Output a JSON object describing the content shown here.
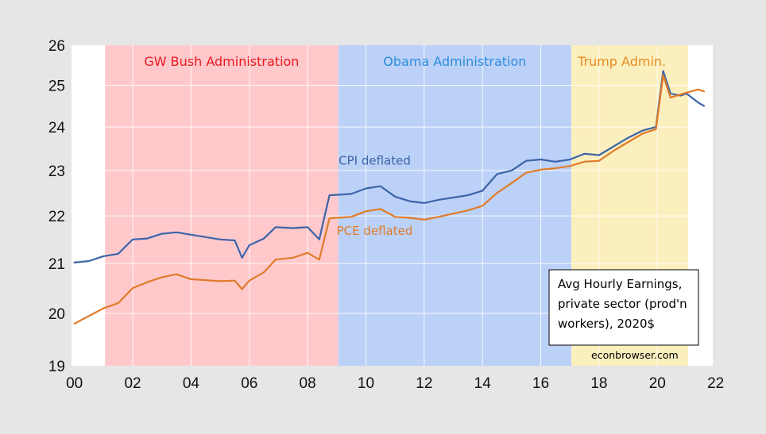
{
  "chart_data": {
    "type": "line",
    "title": "",
    "xlabel": "",
    "ylabel": "",
    "xlim": [
      1999.9,
      2021.9
    ],
    "ylim": [
      19,
      26
    ],
    "y_scale": "log",
    "grid": true,
    "x_ticks": [
      {
        "value": 2000,
        "label": "00"
      },
      {
        "value": 2002,
        "label": "02"
      },
      {
        "value": 2004,
        "label": "04"
      },
      {
        "value": 2006,
        "label": "06"
      },
      {
        "value": 2008,
        "label": "08"
      },
      {
        "value": 2010,
        "label": "10"
      },
      {
        "value": 2012,
        "label": "12"
      },
      {
        "value": 2014,
        "label": "14"
      },
      {
        "value": 2016,
        "label": "16"
      },
      {
        "value": 2018,
        "label": "18"
      },
      {
        "value": 2020,
        "label": "20"
      },
      {
        "value": 2022,
        "label": "22"
      }
    ],
    "y_ticks": [
      19,
      20,
      21,
      22,
      23,
      24,
      25,
      26
    ],
    "administrations": [
      {
        "label": "GW Bush Administration",
        "start": 2001.05,
        "end": 2009.05,
        "fill": "#ffc9cc",
        "text_color": "#e8191e"
      },
      {
        "label": "Obama Administration",
        "start": 2009.05,
        "end": 2017.05,
        "fill": "#bcd1f7",
        "text_color": "#2b8cdc"
      },
      {
        "label": "Trump Admin.",
        "start": 2017.05,
        "end": 2021.05,
        "fill": "#fcefbe",
        "text_color": "#e68b22"
      }
    ],
    "series": [
      {
        "name": "CPI deflated",
        "color": "#3c64a8",
        "points": [
          [
            2000.0,
            21.02
          ],
          [
            2000.5,
            21.05
          ],
          [
            2001.0,
            21.15
          ],
          [
            2001.5,
            21.2
          ],
          [
            2002.0,
            21.5
          ],
          [
            2002.5,
            21.52
          ],
          [
            2003.0,
            21.62
          ],
          [
            2003.5,
            21.65
          ],
          [
            2004.0,
            21.6
          ],
          [
            2004.5,
            21.55
          ],
          [
            2005.0,
            21.5
          ],
          [
            2005.5,
            21.48
          ],
          [
            2005.75,
            21.12
          ],
          [
            2006.0,
            21.38
          ],
          [
            2006.5,
            21.52
          ],
          [
            2006.9,
            21.76
          ],
          [
            2007.5,
            21.74
          ],
          [
            2008.0,
            21.76
          ],
          [
            2008.4,
            21.5
          ],
          [
            2008.75,
            22.45
          ],
          [
            2009.5,
            22.48
          ],
          [
            2010.0,
            22.6
          ],
          [
            2010.5,
            22.65
          ],
          [
            2011.0,
            22.42
          ],
          [
            2011.5,
            22.32
          ],
          [
            2012.0,
            22.28
          ],
          [
            2012.5,
            22.35
          ],
          [
            2013.0,
            22.4
          ],
          [
            2013.5,
            22.45
          ],
          [
            2014.0,
            22.55
          ],
          [
            2014.5,
            22.92
          ],
          [
            2015.0,
            23.0
          ],
          [
            2015.5,
            23.22
          ],
          [
            2016.0,
            23.25
          ],
          [
            2016.5,
            23.2
          ],
          [
            2017.0,
            23.25
          ],
          [
            2017.5,
            23.38
          ],
          [
            2018.0,
            23.35
          ],
          [
            2018.5,
            23.55
          ],
          [
            2019.0,
            23.75
          ],
          [
            2019.5,
            23.92
          ],
          [
            2019.95,
            24.0
          ],
          [
            2020.2,
            25.35
          ],
          [
            2020.45,
            24.8
          ],
          [
            2020.8,
            24.75
          ],
          [
            2021.0,
            24.8
          ],
          [
            2021.4,
            24.58
          ],
          [
            2021.6,
            24.5
          ]
        ]
      },
      {
        "name": "PCE deflated",
        "color": "#e07b28",
        "points": [
          [
            2000.0,
            19.8
          ],
          [
            2000.5,
            19.95
          ],
          [
            2001.0,
            20.1
          ],
          [
            2001.5,
            20.2
          ],
          [
            2002.0,
            20.5
          ],
          [
            2002.5,
            20.62
          ],
          [
            2003.0,
            20.72
          ],
          [
            2003.5,
            20.78
          ],
          [
            2004.0,
            20.68
          ],
          [
            2004.5,
            20.66
          ],
          [
            2005.0,
            20.64
          ],
          [
            2005.5,
            20.65
          ],
          [
            2005.75,
            20.48
          ],
          [
            2006.0,
            20.65
          ],
          [
            2006.5,
            20.82
          ],
          [
            2006.9,
            21.08
          ],
          [
            2007.5,
            21.12
          ],
          [
            2008.0,
            21.22
          ],
          [
            2008.4,
            21.08
          ],
          [
            2008.75,
            21.95
          ],
          [
            2009.5,
            21.98
          ],
          [
            2010.0,
            22.1
          ],
          [
            2010.5,
            22.15
          ],
          [
            2011.0,
            21.98
          ],
          [
            2011.5,
            21.96
          ],
          [
            2012.0,
            21.92
          ],
          [
            2012.5,
            21.98
          ],
          [
            2013.0,
            22.05
          ],
          [
            2013.5,
            22.12
          ],
          [
            2014.0,
            22.22
          ],
          [
            2014.5,
            22.5
          ],
          [
            2015.0,
            22.72
          ],
          [
            2015.5,
            22.95
          ],
          [
            2016.0,
            23.02
          ],
          [
            2016.5,
            23.05
          ],
          [
            2017.0,
            23.1
          ],
          [
            2017.5,
            23.2
          ],
          [
            2018.0,
            23.22
          ],
          [
            2018.5,
            23.45
          ],
          [
            2019.0,
            23.65
          ],
          [
            2019.5,
            23.85
          ],
          [
            2019.95,
            23.95
          ],
          [
            2020.2,
            25.25
          ],
          [
            2020.45,
            24.7
          ],
          [
            2020.8,
            24.78
          ],
          [
            2021.0,
            24.82
          ],
          [
            2021.4,
            24.9
          ],
          [
            2021.6,
            24.85
          ]
        ]
      }
    ],
    "series_labels": [
      {
        "text": "CPI deflated",
        "series": 0,
        "x": 2010.3,
        "y": 23.13
      },
      {
        "text": "PCE deflated",
        "series": 1,
        "x": 2010.3,
        "y": 21.6
      }
    ],
    "note": {
      "lines": [
        "Avg Hourly Earnings,",
        "private sector (prod'n",
        "workers), 2020$"
      ],
      "credit": "econbrowser.com"
    }
  }
}
